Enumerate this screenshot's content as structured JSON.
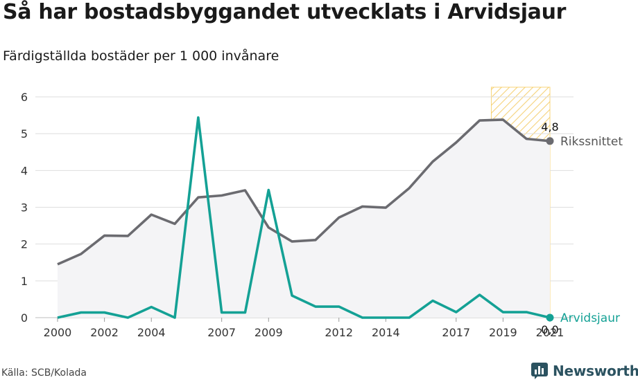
{
  "title": "Så har bostadsbyggandet utvecklats i Arvidsjaur",
  "subtitle": "Färdigställda bostäder per 1 000 invånare",
  "source": "Källa: SCB/Kolada",
  "brand": {
    "name": "Newsworthy",
    "icon": "newsworthy-logo-icon",
    "color": "#2b5260"
  },
  "chart_data": {
    "type": "line",
    "title": "Så har bostadsbyggandet utvecklats i Arvidsjaur",
    "subtitle": "Färdigställda bostäder per 1 000 invånare",
    "ylim": [
      0,
      6
    ],
    "yticks": [
      0,
      1,
      2,
      3,
      4,
      5,
      6
    ],
    "xlim": [
      2000,
      2021
    ],
    "xtick_labels": [
      "2000",
      "2002",
      "2004",
      "2007",
      "2009",
      "2012",
      "2014",
      "2017",
      "2019",
      "2021"
    ],
    "grid": true,
    "highlight": {
      "from": 2018.5,
      "to": 2021,
      "pattern": "diagonal-hatch",
      "color": "#f5c542"
    },
    "series": [
      {
        "name": "Rikssnittet",
        "color": "#6b6b70",
        "fill": "#f4f4f6",
        "end_label": "4,8",
        "x": [
          2000,
          2001,
          2002,
          2003,
          2004,
          2005,
          2006,
          2007,
          2008,
          2009,
          2010,
          2011,
          2012,
          2013,
          2014,
          2015,
          2016,
          2017,
          2018,
          2019,
          2020,
          2021
        ],
        "values": [
          1.45,
          1.73,
          2.23,
          2.22,
          2.8,
          2.55,
          3.27,
          3.32,
          3.46,
          2.45,
          2.07,
          2.11,
          2.72,
          3.02,
          2.99,
          3.52,
          4.24,
          4.76,
          5.36,
          5.38,
          4.86,
          4.8
        ]
      },
      {
        "name": "Arvidsjaur",
        "color": "#14a195",
        "end_label": "0,0",
        "x": [
          2000,
          2001,
          2002,
          2003,
          2004,
          2005,
          2006,
          2007,
          2008,
          2009,
          2010,
          2011,
          2012,
          2013,
          2014,
          2015,
          2016,
          2017,
          2018,
          2019,
          2020,
          2021
        ],
        "values": [
          0.0,
          0.14,
          0.14,
          0.0,
          0.29,
          0.0,
          5.44,
          0.14,
          0.14,
          3.47,
          0.6,
          0.3,
          0.3,
          0.0,
          0.0,
          0.0,
          0.46,
          0.15,
          0.62,
          0.15,
          0.15,
          0.0
        ]
      }
    ]
  }
}
